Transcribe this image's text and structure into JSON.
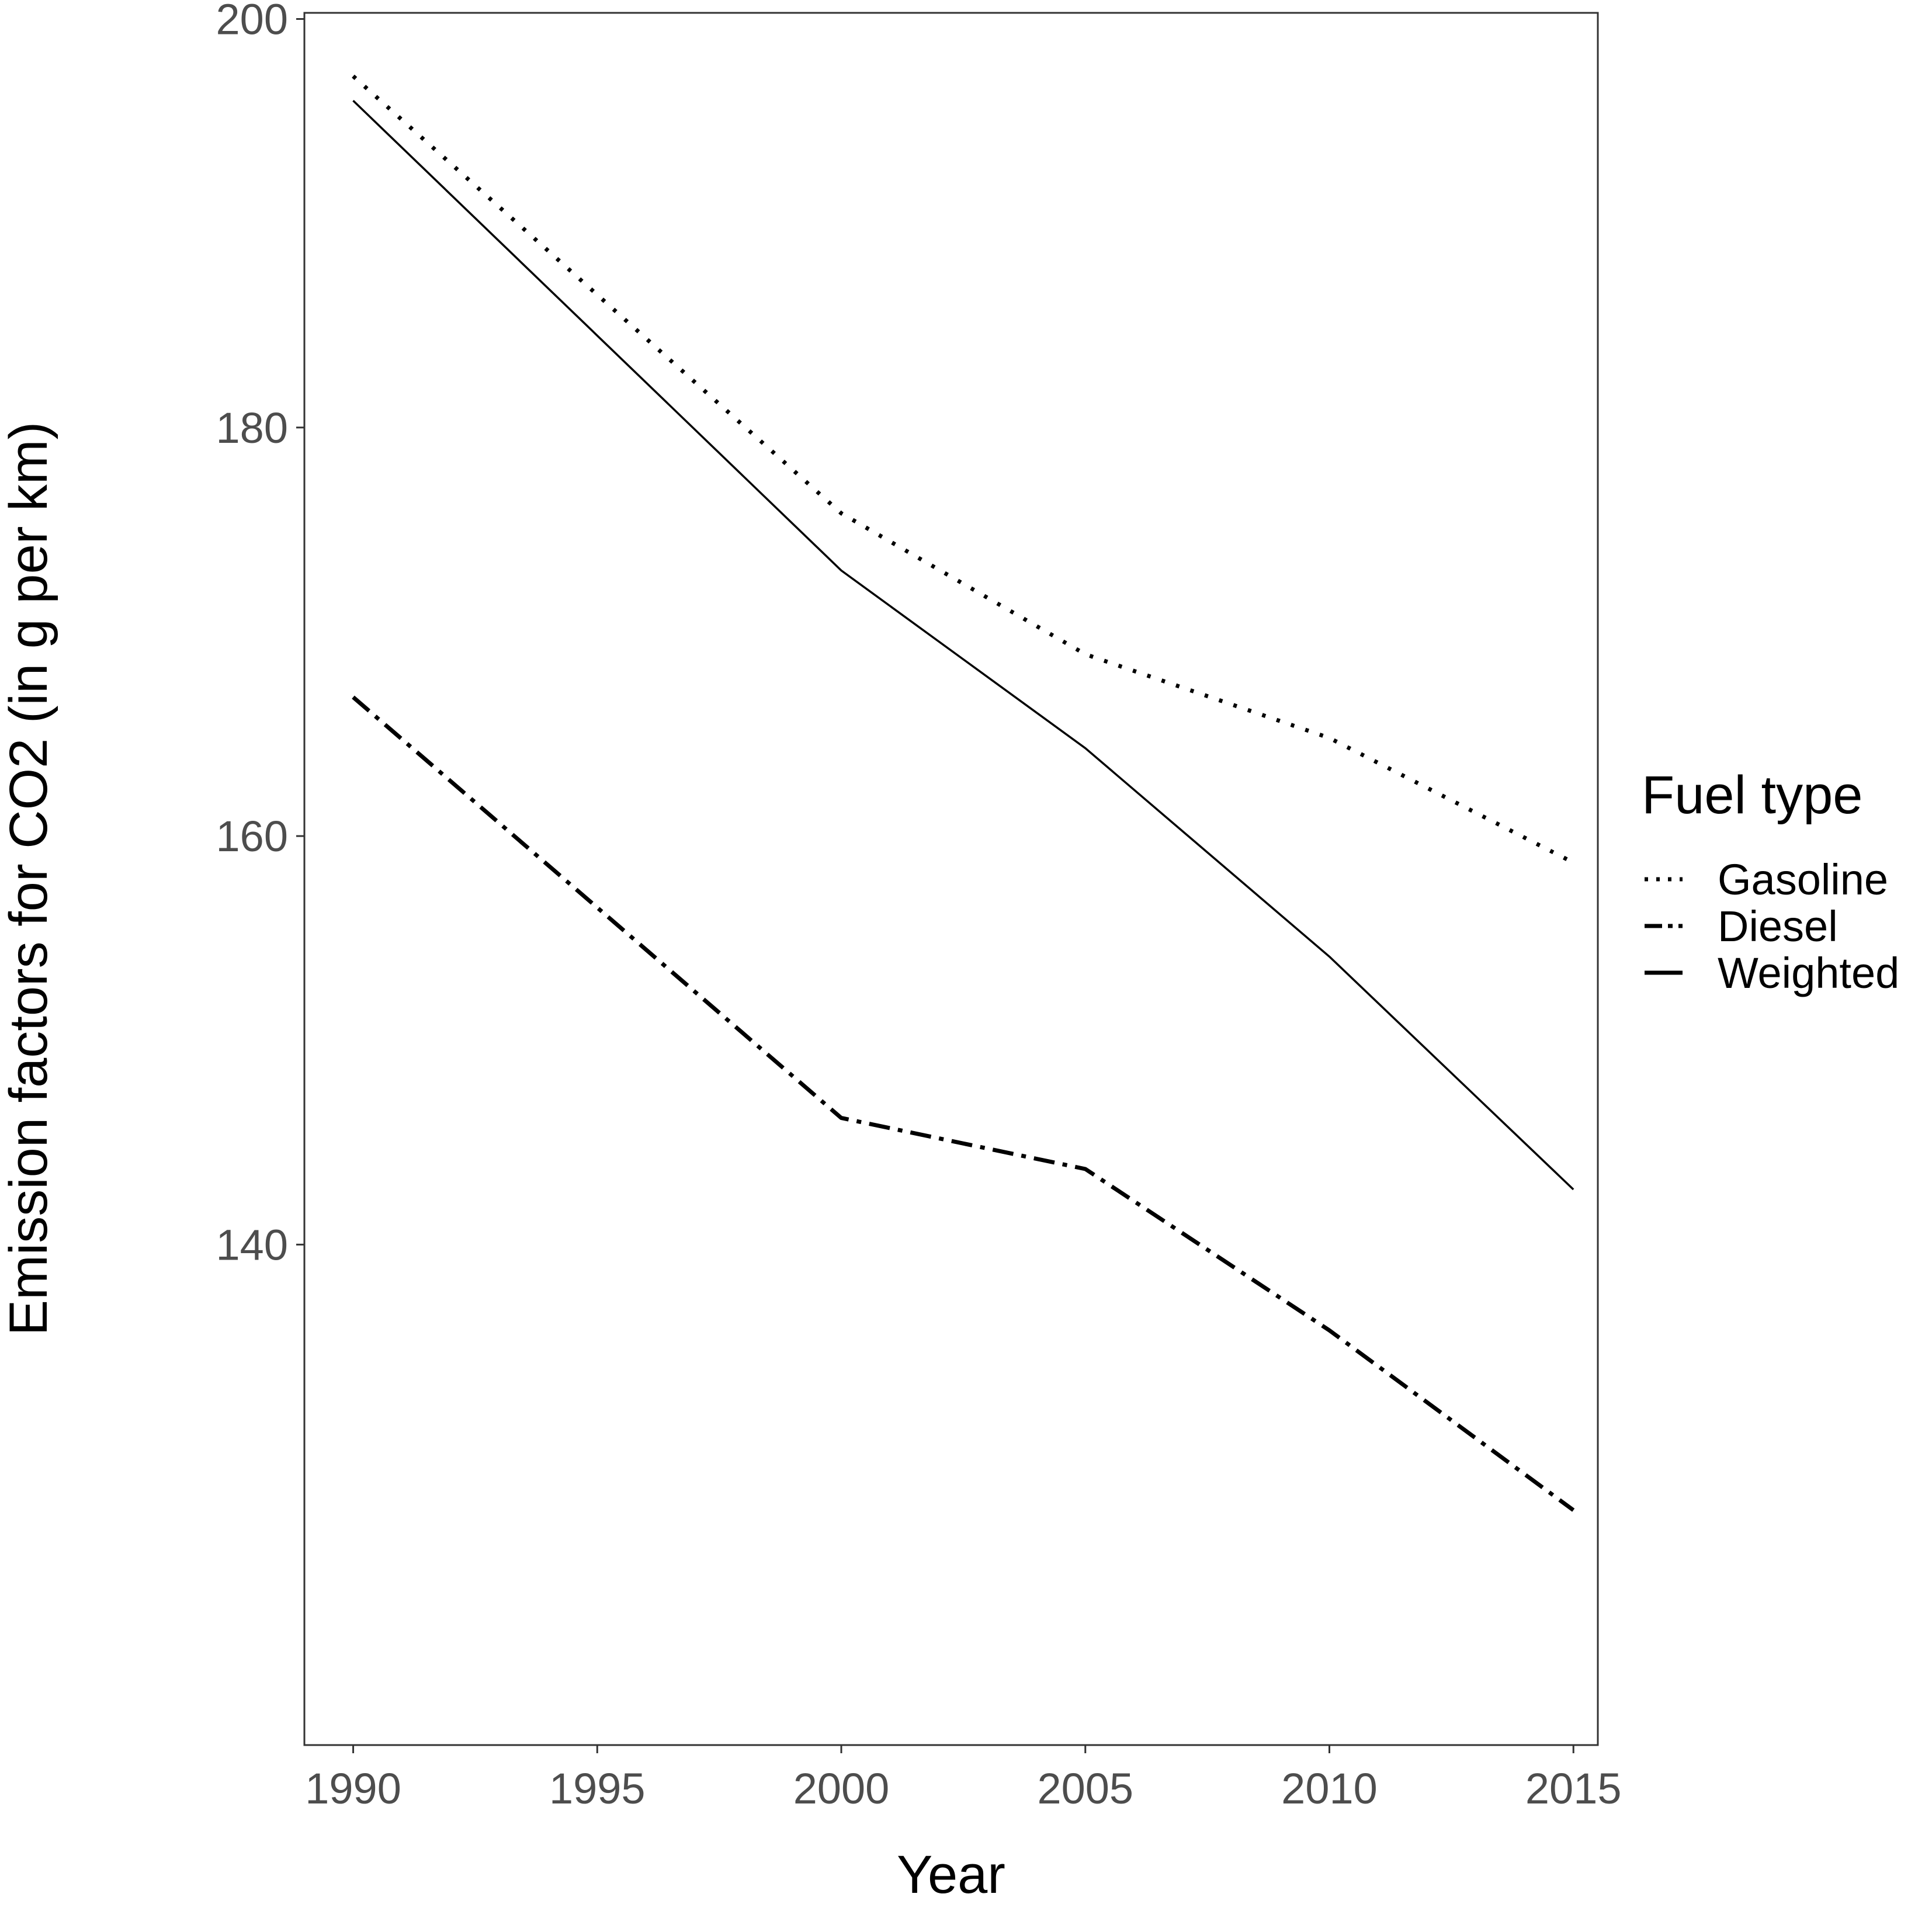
{
  "chart_data": {
    "type": "line",
    "xlabel": "Year",
    "ylabel": "Emission factors for CO2 (in g per km)",
    "x": [
      1990,
      2000,
      2005,
      2010,
      2015
    ],
    "xlim": [
      1989,
      2015.5
    ],
    "ylim": [
      115.5,
      200.3
    ],
    "x_ticks": [
      "1990",
      "1995",
      "2000",
      "2005",
      "2010",
      "2015"
    ],
    "y_ticks": [
      "140",
      "160",
      "180",
      "200"
    ],
    "grid": false,
    "legend": {
      "title": "Fuel type",
      "position": "right"
    },
    "series": [
      {
        "name": "Gasoline",
        "linetype": "dotted",
        "color": "#000000",
        "values": [
          197.2,
          175.8,
          168.9,
          164.8,
          158.7
        ]
      },
      {
        "name": "Diesel",
        "linetype": "dashdot",
        "color": "#000000",
        "values": [
          166.8,
          146.2,
          143.7,
          135.8,
          127.0
        ]
      },
      {
        "name": "Weighted",
        "linetype": "solid",
        "color": "#000000",
        "values": [
          196.0,
          173.0,
          164.3,
          154.1,
          142.7
        ]
      }
    ]
  }
}
